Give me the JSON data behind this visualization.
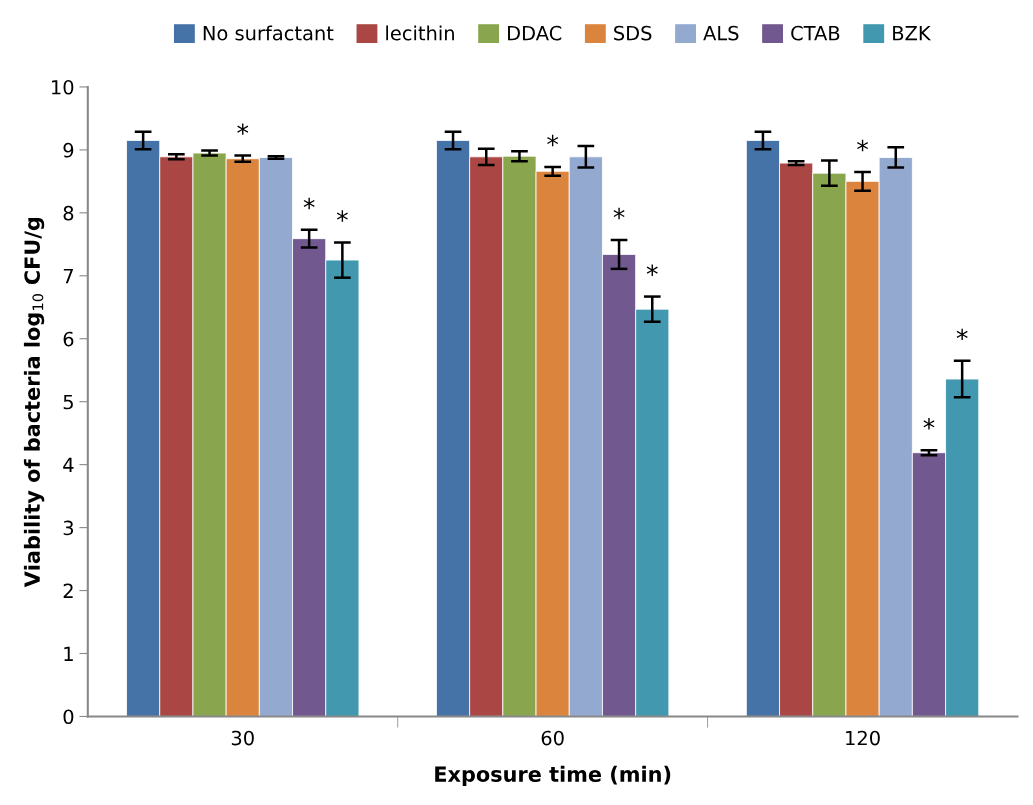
{
  "chart_data": {
    "type": "bar",
    "xlabel": "Exposure time (min)",
    "ylabel": "Viability of bacteria log$_{10}$ CFU/g",
    "categories": [
      "30",
      "60",
      "120"
    ],
    "series": [
      {
        "name": "No surfactant",
        "color": "#4572a7",
        "values": [
          9.15,
          9.15,
          9.15
        ],
        "errors": [
          0.14,
          0.14,
          0.14
        ]
      },
      {
        "name": "lecithin",
        "color": "#aa4643",
        "values": [
          8.89,
          8.89,
          8.79
        ],
        "errors": [
          0.04,
          0.13,
          0.03
        ]
      },
      {
        "name": "DDAC",
        "color": "#89a54e",
        "values": [
          8.95,
          8.9,
          8.63
        ],
        "errors": [
          0.04,
          0.08,
          0.2
        ]
      },
      {
        "name": "SDS",
        "color": "#db843d",
        "values": [
          8.86,
          8.66,
          8.5
        ],
        "errors": [
          0.05,
          0.07,
          0.15
        ],
        "value_labels": [
          "*",
          "*",
          "*"
        ]
      },
      {
        "name": "ALS",
        "color": "#93a9cf",
        "values": [
          8.88,
          8.89,
          8.88
        ],
        "errors": [
          0.02,
          0.17,
          0.16
        ]
      },
      {
        "name": "CTAB",
        "color": "#71588f",
        "values": [
          7.59,
          7.34,
          4.19
        ],
        "errors": [
          0.14,
          0.23,
          0.04
        ],
        "value_labels": [
          "*",
          "*",
          "*"
        ]
      },
      {
        "name": "BZK",
        "color": "#4198af",
        "values": [
          7.25,
          6.47,
          5.36
        ],
        "errors": [
          0.28,
          0.2,
          0.29
        ],
        "value_labels": [
          "*",
          "*",
          "*"
        ]
      }
    ],
    "ylim": [
      0,
      10
    ],
    "yticks": [
      0,
      1,
      2,
      3,
      4,
      5,
      6,
      7,
      8,
      9,
      10
    ],
    "grid": false,
    "legend": "top"
  }
}
